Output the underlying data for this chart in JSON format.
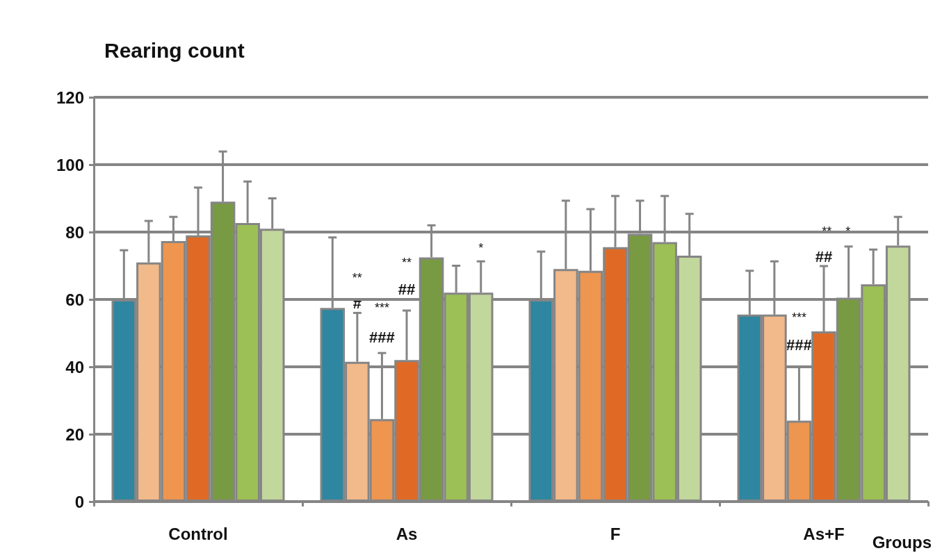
{
  "chart_data": {
    "type": "bar",
    "title": "Rearing count",
    "xlabel": "Groups",
    "categories": [
      "Control",
      "As",
      "F",
      "As+F"
    ],
    "ylim": [
      0,
      120
    ],
    "yticks": [
      0,
      20,
      40,
      60,
      80,
      100,
      120
    ],
    "grid": "y",
    "series": [
      {
        "color": "#2e86a0",
        "values": [
          60,
          57.5,
          60,
          55.5
        ],
        "errors": [
          [
            60,
            74.6
          ],
          [
            57.5,
            78.4
          ],
          [
            60,
            74.2
          ],
          [
            55.5,
            68.5
          ]
        ]
      },
      {
        "color": "#f2b98a",
        "values": [
          71,
          41.5,
          69,
          55.5
        ],
        "errors": [
          [
            71,
            83.3
          ],
          [
            41.5,
            56
          ],
          [
            69,
            89.3
          ],
          [
            55.5,
            71.3
          ]
        ]
      },
      {
        "color": "#ee9550",
        "values": [
          77.3,
          24.5,
          68.5,
          24
        ],
        "errors": [
          [
            77.3,
            84.5
          ],
          [
            24.5,
            44.1
          ],
          [
            68.5,
            86.8
          ],
          [
            24,
            40
          ]
        ]
      },
      {
        "color": "#e06a25",
        "values": [
          79,
          42,
          75.5,
          50.5
        ],
        "errors": [
          [
            79,
            93.2
          ],
          [
            42,
            56.7
          ],
          [
            75.5,
            90.7
          ],
          [
            50.5,
            69.9
          ]
        ]
      },
      {
        "color": "#789a42",
        "values": [
          89,
          72.5,
          79.5,
          60.5
        ],
        "errors": [
          [
            89,
            103.9
          ],
          [
            72.5,
            82
          ],
          [
            79.5,
            89.3
          ],
          [
            60.5,
            75.7
          ]
        ]
      },
      {
        "color": "#9cc055",
        "values": [
          82.7,
          62,
          77,
          64.5
        ],
        "errors": [
          [
            82.7,
            95
          ],
          [
            62,
            70
          ],
          [
            77,
            90.7
          ],
          [
            64.5,
            74.8
          ]
        ]
      },
      {
        "color": "#c2d79c",
        "values": [
          81,
          62,
          73,
          76
        ],
        "errors": [
          [
            81,
            90
          ],
          [
            62,
            71.3
          ],
          [
            73,
            85.4
          ],
          [
            76,
            84.5
          ]
        ]
      }
    ],
    "annotations": [
      "**",
      "#",
      "***",
      "###",
      "**",
      "##",
      "*",
      "**    *",
      "##",
      "***",
      "###"
    ]
  }
}
